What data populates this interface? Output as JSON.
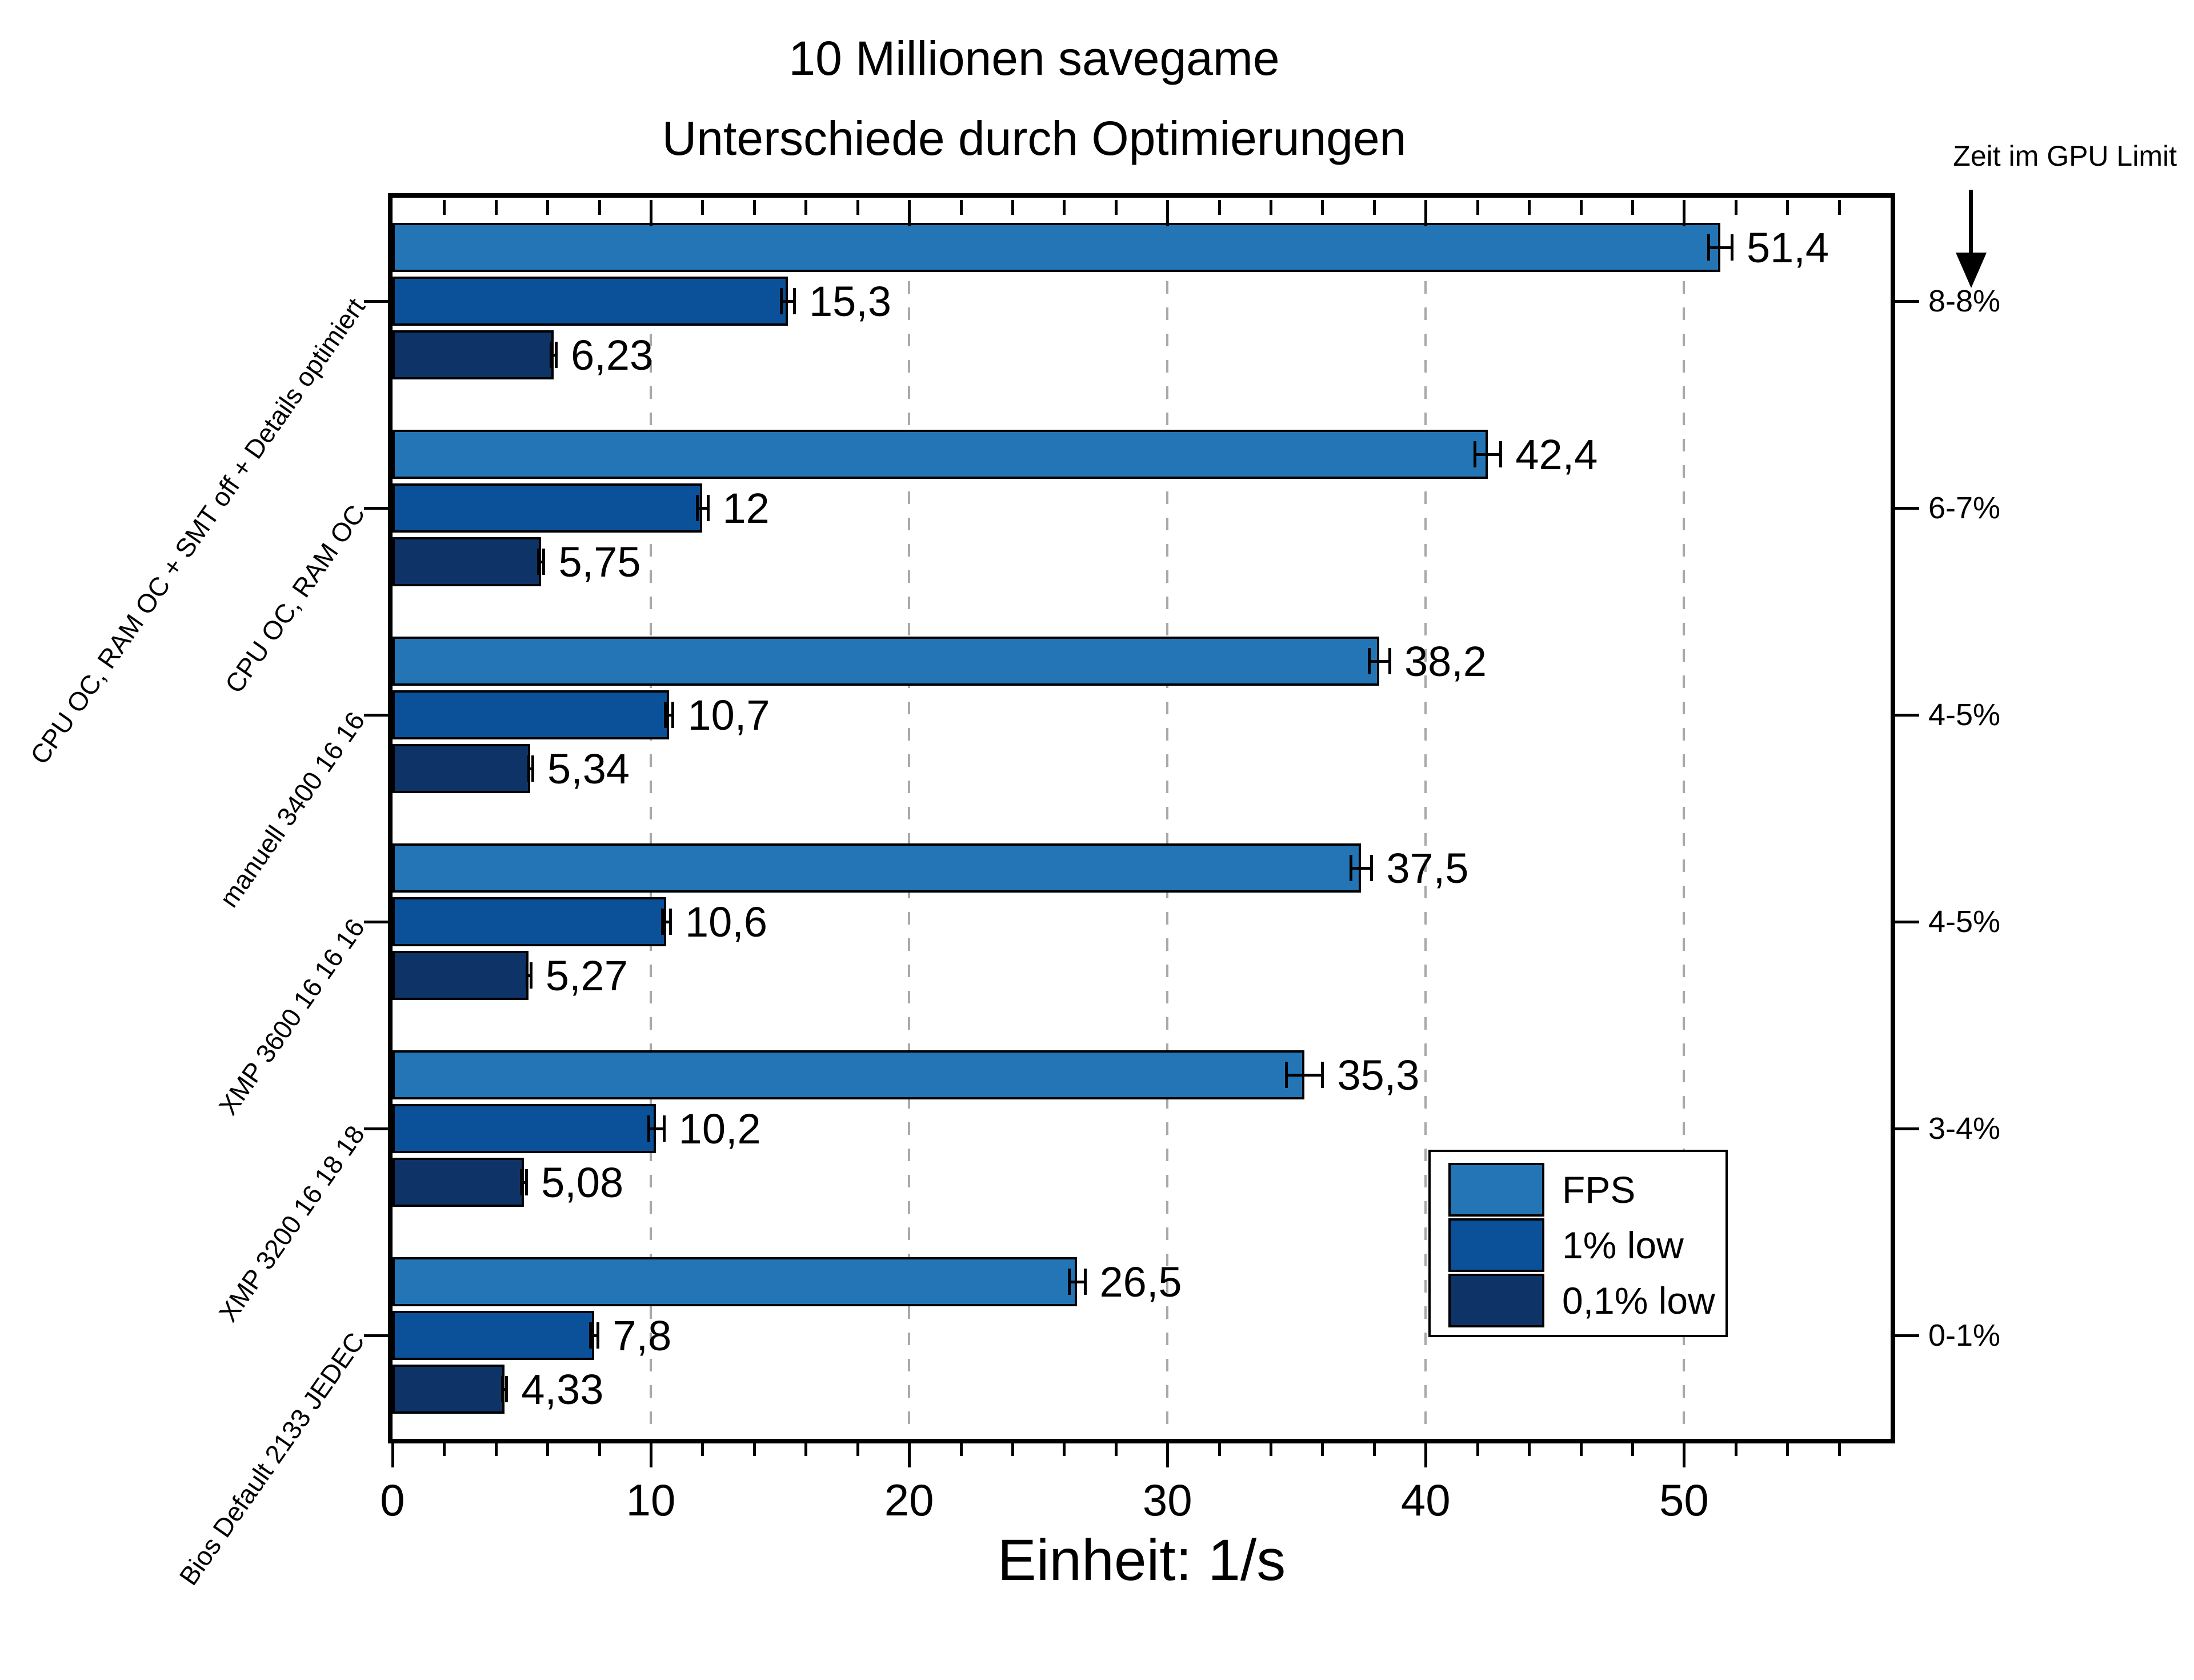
{
  "title": {
    "line1": "10 Millionen savegame",
    "line2": "Unterschiede durch Optimierungen"
  },
  "right_axis": {
    "title": "Zeit im GPU Limit"
  },
  "chart_data": {
    "type": "bar",
    "orientation": "horizontal",
    "title": "10 Millionen savegame - Unterschiede durch Optimierungen",
    "xlabel": "Einheit: 1/s",
    "xlim": [
      0,
      58
    ],
    "grid": "vertical dashed at major ticks",
    "legend_position": "lower right",
    "x_ticks": {
      "values": [
        0,
        10,
        20,
        30,
        40,
        50
      ],
      "labels": [
        "0",
        "10",
        "20",
        "30",
        "40",
        "50"
      ],
      "minor_step": 2
    },
    "categories": [
      "CPU OC, RAM OC + SMT off + Details optimiert",
      "CPU OC, RAM OC",
      "manuell 3400 16 16",
      "XMP 3600 16 16 16",
      "XMP 3200 16 18 18",
      "Bios Default 2133 JEDEC"
    ],
    "gpu_limit_labels": [
      "8-8%",
      "6-7%",
      "4-5%",
      "4-5%",
      "3-4%",
      "0-1%"
    ],
    "series": [
      {
        "name": "FPS",
        "color": "#2475B6",
        "values": [
          51.4,
          42.4,
          38.2,
          37.5,
          35.3,
          26.5
        ],
        "labels": [
          "51,4",
          "42,4",
          "38,2",
          "37,5",
          "35,3",
          "26,5"
        ],
        "errors": [
          0.45,
          0.5,
          0.4,
          0.4,
          0.7,
          0.3
        ]
      },
      {
        "name": "1% low",
        "color": "#0B5199",
        "values": [
          15.3,
          12,
          10.7,
          10.6,
          10.2,
          7.8
        ],
        "labels": [
          "15,3",
          "12",
          "10,7",
          "10,6",
          "10,2",
          "7,8"
        ],
        "errors": [
          0.25,
          0.2,
          0.15,
          0.15,
          0.3,
          0.15
        ]
      },
      {
        "name": "0,1% low",
        "color": "#0E3367",
        "values": [
          6.23,
          5.75,
          5.34,
          5.27,
          5.08,
          4.33
        ],
        "labels": [
          "6,23",
          "5,75",
          "5,34",
          "5,27",
          "5,08",
          "4,33"
        ],
        "errors": [
          0.1,
          0.1,
          0.08,
          0.08,
          0.1,
          0.08
        ]
      }
    ],
    "colors": {
      "grid": "#A9A9A9",
      "frame": "#000000",
      "background": "#FFFFFF"
    }
  }
}
